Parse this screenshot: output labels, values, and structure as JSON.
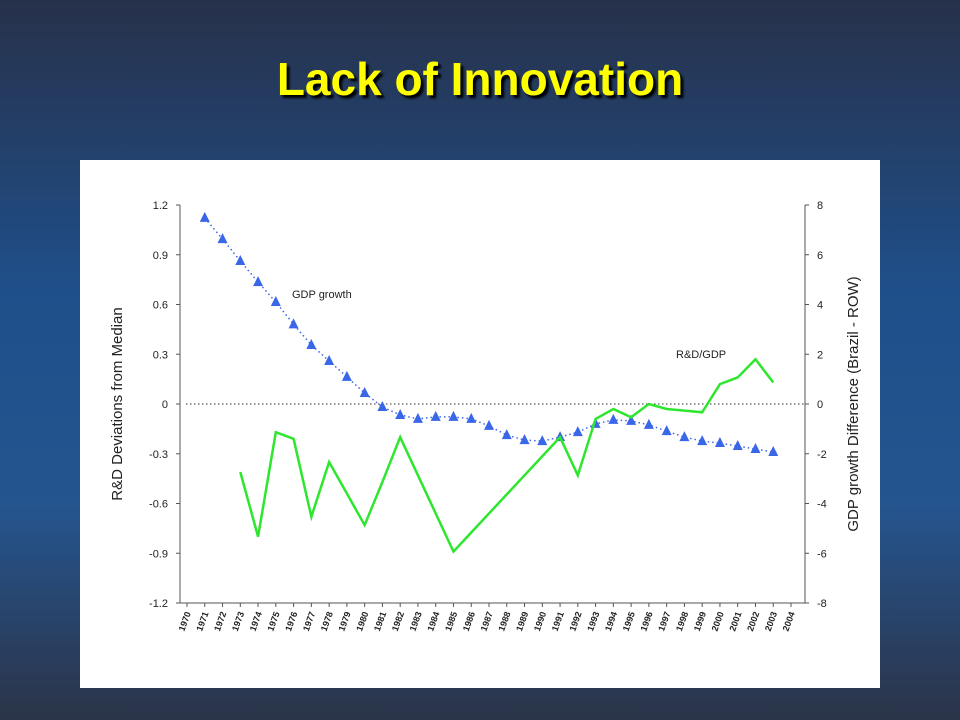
{
  "slide_title": "Lack of Innovation",
  "chart_data": {
    "type": "line",
    "ylabel": "R&D Deviations from Median",
    "y2label": "GDP growth Difference (Brazil - ROW)",
    "categories": [
      "1970",
      "1971",
      "1972",
      "1973",
      "1974",
      "1975",
      "1976",
      "1977",
      "1978",
      "1979",
      "1980",
      "1981",
      "1982",
      "1983",
      "1984",
      "1985",
      "1986",
      "1987",
      "1988",
      "1989",
      "1990",
      "1991",
      "1992",
      "1993",
      "1994",
      "1995",
      "1996",
      "1997",
      "1998",
      "1999",
      "2000",
      "2001",
      "2002",
      "2003",
      "2004"
    ],
    "ylim": [
      -1.2,
      1.2
    ],
    "yticks": [
      1.2,
      0.9,
      0.6,
      0.3,
      0,
      -0.3,
      -0.6,
      -0.9,
      -1.2
    ],
    "y2lim": [
      -8,
      8
    ],
    "y2ticks": [
      8,
      6,
      4,
      2,
      0,
      -2,
      -4,
      -6,
      -8
    ],
    "zero_line": true,
    "series": [
      {
        "name": "GDP growth",
        "axis": "y2",
        "color": "#3a66e8",
        "marker": "triangle",
        "line_style": "dotted",
        "values": [
          null,
          7.48,
          6.63,
          5.75,
          4.9,
          4.1,
          3.2,
          2.37,
          1.73,
          1.09,
          0.44,
          -0.12,
          -0.44,
          -0.6,
          -0.52,
          -0.52,
          -0.6,
          -0.88,
          -1.25,
          -1.45,
          -1.49,
          -1.33,
          -1.13,
          -0.8,
          -0.64,
          -0.68,
          -0.84,
          -1.09,
          -1.33,
          -1.49,
          -1.57,
          -1.69,
          -1.81,
          -1.93,
          null
        ]
      },
      {
        "name": "R&D/GDP",
        "axis": "y",
        "color": "#2ee62e",
        "marker": "none",
        "line_style": "solid",
        "values": [
          null,
          null,
          null,
          -0.41,
          -0.8,
          -0.17,
          -0.21,
          -0.68,
          -0.35,
          -0.54,
          -0.73,
          -0.47,
          -0.2,
          -0.43,
          -0.66,
          -0.89,
          -0.775,
          -0.66,
          -0.545,
          -0.43,
          -0.315,
          -0.2,
          -0.43,
          -0.09,
          -0.03,
          -0.08,
          0,
          -0.03,
          -0.04,
          -0.05,
          0.12,
          0.16,
          0.27,
          0.13,
          null
        ]
      }
    ],
    "annotations": [
      {
        "text": "GDP growth",
        "series": 0
      },
      {
        "text": "R&D/GDP",
        "series": 1
      }
    ]
  }
}
